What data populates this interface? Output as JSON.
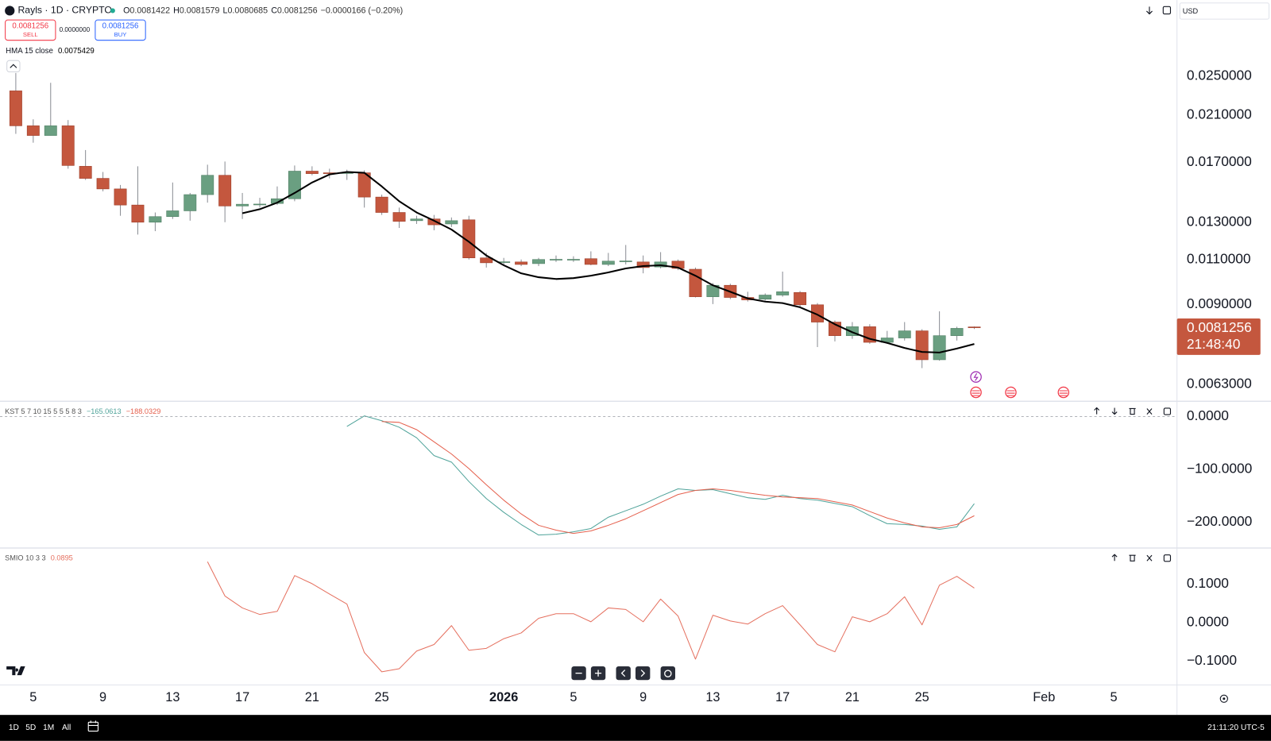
{
  "chart_data": [
    {
      "type": "candlestick",
      "x": [
        -1,
        0,
        1,
        2,
        3,
        4,
        5,
        6,
        7,
        8,
        9,
        10,
        11,
        12,
        13,
        14,
        15,
        16,
        17,
        18,
        19,
        20,
        21,
        22,
        23,
        24,
        25,
        26,
        27,
        28,
        29,
        30,
        31,
        32,
        33,
        34,
        35,
        36,
        37,
        38,
        39,
        40,
        41,
        42,
        43,
        44,
        45,
        46,
        47,
        48,
        49,
        50,
        51,
        52,
        53,
        54
      ],
      "open": [
        0.02342,
        0.02003,
        0.01918,
        0.02003,
        0.01671,
        0.01583,
        0.0151,
        0.01405,
        0.01301,
        0.01334,
        0.01369,
        0.01472,
        0.01605,
        0.01399,
        0.0141,
        0.01415,
        0.01445,
        0.01635,
        0.01623,
        0.01623,
        0.01623,
        0.01456,
        0.01359,
        0.0131,
        0.0132,
        0.01291,
        0.01315,
        0.01109,
        0.01089,
        0.01089,
        0.01081,
        0.01101,
        0.01101,
        0.01105,
        0.01077,
        0.01093,
        0.01089,
        0.01065,
        0.01093,
        0.01054,
        0.00932,
        0.00981,
        0.00929,
        0.00922,
        0.00939,
        0.0095,
        0.00899,
        0.00832,
        0.00783,
        0.00815,
        0.0076,
        0.00775,
        0.008,
        0.00703,
        0.00783,
        0.0081422
      ],
      "high": [
        0.02537,
        0.02062,
        0.02428,
        0.02055,
        0.01797,
        0.01629,
        0.01537,
        0.01671,
        0.01359,
        0.01554,
        0.01483,
        0.01683,
        0.01707,
        0.01483,
        0.01451,
        0.01527,
        0.01677,
        0.01671,
        0.01653,
        0.01646,
        0.01641,
        0.01472,
        0.01389,
        0.01339,
        0.01344,
        0.01329,
        0.01339,
        0.01134,
        0.01109,
        0.01101,
        0.01109,
        0.01121,
        0.01117,
        0.01142,
        0.01134,
        0.01175,
        0.01121,
        0.01138,
        0.01101,
        0.01062,
        0.00991,
        0.00988,
        0.00953,
        0.00946,
        0.01043,
        0.00956,
        0.00906,
        0.00838,
        0.00832,
        0.00824,
        0.008,
        0.00832,
        0.00806,
        0.00873,
        0.00815,
        0.0081579
      ],
      "low": [
        0.01932,
        0.01857,
        0.01918,
        0.01653,
        0.01572,
        0.01494,
        0.01339,
        0.01231,
        0.0125,
        0.0132,
        0.0131,
        0.0142,
        0.01301,
        0.0132,
        0.01389,
        0.01405,
        0.01429,
        0.01605,
        0.01583,
        0.01572,
        0.01389,
        0.01344,
        0.01268,
        0.01291,
        0.01255,
        0.01273,
        0.01101,
        0.01062,
        0.01077,
        0.01069,
        0.01069,
        0.01089,
        0.01089,
        0.01073,
        0.01069,
        0.01077,
        0.01035,
        0.01058,
        0.0105,
        0.00929,
        0.00902,
        0.00922,
        0.00912,
        0.00916,
        0.00932,
        0.00892,
        0.00744,
        0.00763,
        0.00772,
        0.00755,
        0.00755,
        0.00766,
        0.00677,
        0.007,
        0.00766,
        0.0080685
      ],
      "close": [
        0.02003,
        0.01918,
        0.02003,
        0.01677,
        0.01583,
        0.0151,
        0.01405,
        0.01301,
        0.01334,
        0.01369,
        0.01472,
        0.01605,
        0.01399,
        0.0141,
        0.01411,
        0.01445,
        0.01635,
        0.01617,
        0.01617,
        0.01624,
        0.01456,
        0.01359,
        0.01306,
        0.0132,
        0.01286,
        0.0131,
        0.01109,
        0.01085,
        0.0109,
        0.01077,
        0.01101,
        0.01102,
        0.01102,
        0.01077,
        0.01093,
        0.01094,
        0.01062,
        0.01089,
        0.01058,
        0.00932,
        0.00981,
        0.00929,
        0.00919,
        0.00939,
        0.00953,
        0.00899,
        0.00832,
        0.00783,
        0.00815,
        0.0076,
        0.00775,
        0.008,
        0.00703,
        0.00783,
        0.00809,
        0.0081256
      ],
      "colors": {
        "up": "#6a9f81",
        "down": "#c4573e",
        "wick": "#8a8d94"
      },
      "series": [
        {
          "color": "#000000",
          "values": [
            null,
            null,
            null,
            null,
            null,
            null,
            null,
            null,
            null,
            null,
            null,
            null,
            null,
            0.01354,
            0.01379,
            0.0142,
            0.01483,
            0.01554,
            0.01611,
            0.01629,
            0.01623,
            0.01527,
            0.01429,
            0.01359,
            0.0131,
            0.01259,
            0.01192,
            0.01121,
            0.01073,
            0.01035,
            0.01017,
            0.01009,
            0.01013,
            0.01024,
            0.01039,
            0.01058,
            0.01069,
            0.01073,
            0.01062,
            0.01024,
            0.00981,
            0.00953,
            0.00925,
            0.00912,
            0.00906,
            0.00889,
            0.0086,
            0.00824,
            0.00795,
            0.00772,
            0.00758,
            0.00741,
            0.00728,
            0.00726,
            0.00739,
            0.0075429
          ]
        }
      ],
      "legend_title": "HMA 15 close",
      "legend_values": [
        "0.0075429"
      ],
      "log_scale": true,
      "ylim": [
        0.005837,
        0.03515
      ],
      "yticks": [
        {
          "value": 0.025,
          "label": "0.0250000"
        },
        {
          "value": 0.021,
          "label": "0.0210000"
        },
        {
          "value": 0.017,
          "label": "0.0170000"
        },
        {
          "value": 0.013,
          "label": "0.0130000"
        },
        {
          "value": 0.011,
          "label": "0.0110000"
        },
        {
          "value": 0.009,
          "label": "0.0090000"
        },
        {
          "value": 0.0063,
          "label": "0.0063000"
        }
      ],
      "xlim": [
        -1.907,
        65.63
      ],
      "xticks": [
        {
          "value": 0,
          "label": "5"
        },
        {
          "value": 4,
          "label": "9"
        },
        {
          "value": 8,
          "label": "13"
        },
        {
          "value": 12,
          "label": "17"
        },
        {
          "value": 16,
          "label": "21"
        },
        {
          "value": 20,
          "label": "25"
        },
        {
          "value": 27,
          "label": "2026",
          "bold": true
        },
        {
          "value": 31,
          "label": "5"
        },
        {
          "value": 35,
          "label": "9"
        },
        {
          "value": 39,
          "label": "13"
        },
        {
          "value": 43,
          "label": "17"
        },
        {
          "value": 47,
          "label": "21"
        },
        {
          "value": 51,
          "label": "25"
        },
        {
          "value": 58,
          "label": "Feb"
        },
        {
          "value": 62,
          "label": "5"
        }
      ]
    },
    {
      "type": "line",
      "legend_title": "KST 5 7 10 15 5 5 5 8 3",
      "legend_values": [
        "−165.0613",
        "−188.0329"
      ],
      "series": [
        {
          "color": "#4fa39a",
          "values": [
            null,
            null,
            null,
            null,
            null,
            null,
            null,
            null,
            null,
            null,
            null,
            null,
            null,
            null,
            null,
            null,
            null,
            null,
            null,
            -18.5,
            1.5,
            -7.7,
            -20.0,
            -40.0,
            -73.8,
            -86.2,
            -123.1,
            -155.4,
            -181.5,
            -204.6,
            -224.6,
            -223.1,
            -218.5,
            -212.3,
            -190.8,
            -178.5,
            -166.2,
            -150.8,
            -136.9,
            -140.0,
            -138.5,
            -146.2,
            -153.8,
            -156.9,
            -149.2,
            -155.4,
            -158.5,
            -164.6,
            -170.8,
            -187.7,
            -203.1,
            -204.6,
            -207.7,
            -213.8,
            -209.2,
            -165.0613
          ]
        },
        {
          "color": "#e5604d",
          "values": [
            null,
            null,
            null,
            null,
            null,
            null,
            null,
            null,
            null,
            null,
            null,
            null,
            null,
            null,
            null,
            null,
            null,
            null,
            null,
            null,
            null,
            -9.2,
            -10.8,
            -24.6,
            -47.7,
            -70.8,
            -98.5,
            -129.2,
            -158.5,
            -184.6,
            -206.2,
            -215.4,
            -221.5,
            -216.9,
            -206.2,
            -193.8,
            -178.5,
            -163.1,
            -147.7,
            -140.0,
            -136.9,
            -140.0,
            -144.6,
            -149.2,
            -152.3,
            -153.8,
            -155.4,
            -161.5,
            -167.7,
            -180.0,
            -192.3,
            -201.5,
            -209.2,
            -210.8,
            -204.6,
            -188.0329
          ]
        }
      ],
      "zero_line": "dashed",
      "ylim": [
        -249.2,
        29.2
      ],
      "yticks": [
        {
          "value": 0,
          "label": "0.0000"
        },
        {
          "value": -100,
          "label": "−100.0000"
        },
        {
          "value": -200,
          "label": "−200.0000"
        }
      ]
    },
    {
      "type": "line",
      "legend_title": "SMIO 10 3 3",
      "legend_values": [
        "0.0895"
      ],
      "series": [
        {
          "color": "#e5705f",
          "values": [
            null,
            null,
            null,
            null,
            null,
            null,
            null,
            null,
            null,
            null,
            null,
            0.158,
            0.069,
            0.038,
            0.021,
            0.029,
            0.122,
            0.101,
            0.074,
            0.048,
            -0.078,
            -0.128,
            -0.12,
            -0.074,
            -0.057,
            -0.008,
            -0.072,
            -0.067,
            -0.042,
            -0.027,
            0.011,
            0.023,
            0.023,
            0.002,
            0.038,
            0.034,
            0.002,
            0.061,
            0.017,
            -0.095,
            0.019,
            0.004,
            -0.004,
            0.023,
            0.044,
            -0.006,
            -0.057,
            -0.076,
            0.015,
            0.002,
            0.023,
            0.067,
            -0.006,
            0.097,
            0.12,
            0.0895
          ]
        }
      ],
      "ylim": [
        -0.1621,
        0.1937
      ],
      "yticks": [
        {
          "value": 0.1,
          "label": "0.1000"
        },
        {
          "value": 0,
          "label": "0.0000"
        },
        {
          "value": -0.1,
          "label": "−0.1000"
        }
      ]
    }
  ],
  "ui": {
    "symbol": "Rayls · 1D · CRYPTO",
    "ohlc": [
      {
        "key": "O",
        "value": "0.0081422"
      },
      {
        "key": "H",
        "value": "0.0081579"
      },
      {
        "key": "L",
        "value": "0.0080685"
      },
      {
        "key": "C",
        "value": "0.0081256"
      }
    ],
    "change": "−0.0000166 (−0.20%)",
    "sell": {
      "price": "0.0081256",
      "label": "SELL"
    },
    "spread": "0.0000000",
    "buy": {
      "price": "0.0081256",
      "label": "BUY"
    },
    "currency": "USD",
    "price_tag": {
      "price": "0.0081256",
      "countdown": "21:48:40"
    },
    "ranges": [
      "1D",
      "5D",
      "1M",
      "All"
    ],
    "clock": "21:11:20 UTC-5"
  }
}
